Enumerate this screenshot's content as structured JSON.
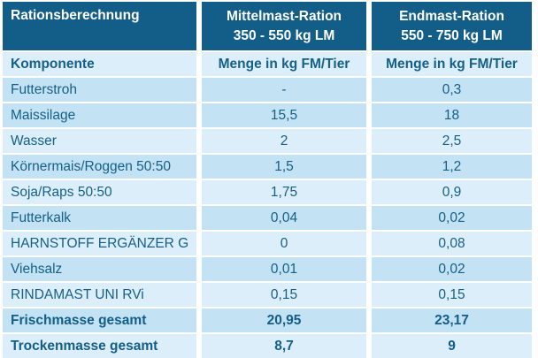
{
  "table": {
    "header": {
      "title": "Rationsberechnung",
      "col2_line1": "Mittelmast-Ration",
      "col2_line2": "350 - 550 kg LM",
      "col3_line1": "Endmast-Ration",
      "col3_line2": "550 - 750 kg LM"
    },
    "subheader": {
      "label": "Komponente",
      "col2": "Menge in kg FM/Tier",
      "col3": "Menge in kg FM/Tier"
    },
    "rows": [
      {
        "label": "Futterstroh",
        "mittelmast": "-",
        "endmast": "0,3"
      },
      {
        "label": "Maissilage",
        "mittelmast": "15,5",
        "endmast": "18"
      },
      {
        "label": "Wasser",
        "mittelmast": "2",
        "endmast": "2,5"
      },
      {
        "label": "Körnermais/Roggen 50:50",
        "mittelmast": "1,5",
        "endmast": "1,2"
      },
      {
        "label": "Soja/Raps 50:50",
        "mittelmast": "1,75",
        "endmast": "0,9"
      },
      {
        "label": "Futterkalk",
        "mittelmast": "0,04",
        "endmast": "0,02"
      },
      {
        "label": "HARNSTOFF ERGÄNZER G",
        "mittelmast": "0",
        "endmast": "0,08"
      },
      {
        "label": "Viehsalz",
        "mittelmast": "0,01",
        "endmast": "0,02"
      },
      {
        "label": "RINDAMAST UNI RVi",
        "mittelmast": "0,15",
        "endmast": "0,15"
      }
    ],
    "totals": [
      {
        "label": "Frischmasse gesamt",
        "mittelmast": "20,95",
        "endmast": "23,17"
      },
      {
        "label": "Trockenmasse gesamt",
        "mittelmast": "8,7",
        "endmast": "9"
      }
    ],
    "colors": {
      "header_bg": "#135e88",
      "header_text": "#ffffff",
      "row_medium": "#c3e2f3",
      "row_light": "#dceef9",
      "text_blue": "#156089",
      "divider": "#ffffff"
    }
  }
}
